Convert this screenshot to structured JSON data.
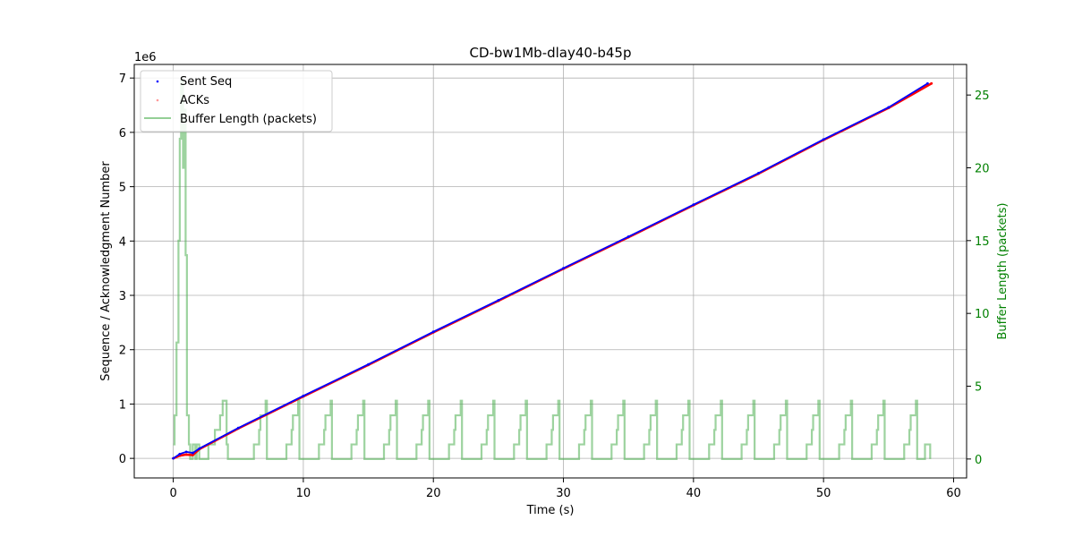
{
  "chart_data": {
    "type": "line",
    "title": "CD-bw1Mb-dlay40-b45p",
    "xlabel": "Time (s)",
    "ylabel": "Sequence / Acknowledgment Number",
    "y2label": "Buffer Length (packets)",
    "y_offset_label": "1e6",
    "xlim": [
      -3,
      61
    ],
    "ylim": [
      -0.36,
      7.25
    ],
    "y2lim": [
      -1.3,
      27.1
    ],
    "x_ticks": [
      0,
      10,
      20,
      30,
      40,
      50,
      60
    ],
    "y_ticks": [
      0,
      1,
      2,
      3,
      4,
      5,
      6,
      7
    ],
    "y2_ticks": [
      0,
      5,
      10,
      15,
      20,
      25
    ],
    "grid": true,
    "legend_position": "top-left",
    "colors": {
      "sent": "#0000ff",
      "acks": "#ff0000",
      "buffer": "#4caf50",
      "right_axis": "#008000"
    },
    "series": [
      {
        "name": "Sent Seq",
        "axis": "left",
        "style": "points",
        "x": [
          0,
          0.5,
          1.0,
          1.5,
          2,
          5,
          10,
          15,
          20,
          25,
          30,
          35,
          40,
          45,
          50,
          55,
          58
        ],
        "y": [
          0,
          0.08,
          0.12,
          0.1,
          0.18,
          0.56,
          1.15,
          1.73,
          2.33,
          2.91,
          3.5,
          4.08,
          4.67,
          5.25,
          5.87,
          6.46,
          6.9
        ]
      },
      {
        "name": "ACKs",
        "axis": "left",
        "style": "points",
        "x": [
          0,
          0.5,
          1.0,
          1.5,
          2,
          5,
          10,
          15,
          20,
          25,
          30,
          35,
          40,
          45,
          50,
          55,
          58.3
        ],
        "y": [
          0,
          0.05,
          0.07,
          0.06,
          0.17,
          0.55,
          1.14,
          1.72,
          2.32,
          2.9,
          3.49,
          4.07,
          4.66,
          5.24,
          5.86,
          6.45,
          6.9
        ]
      },
      {
        "name": "Buffer Length (packets)",
        "axis": "right",
        "style": "steps",
        "x": [
          0,
          0.1,
          0.25,
          0.4,
          0.5,
          0.6,
          0.75,
          0.85,
          0.95,
          1.05,
          1.2,
          1.3,
          1.5,
          1.7,
          1.8,
          2.0,
          2.7,
          3.2,
          3.6,
          3.8,
          4.1,
          4.2,
          6.2,
          6.6,
          6.7,
          7.1,
          7.2,
          8.7,
          9.1,
          9.2,
          9.6,
          9.7,
          11.2,
          11.6,
          11.7,
          12.1,
          12.2,
          13.7,
          14.1,
          14.2,
          14.6,
          14.7,
          16.2,
          16.6,
          16.7,
          17.1,
          17.2,
          18.7,
          19.1,
          19.2,
          19.6,
          19.7,
          21.2,
          21.6,
          21.7,
          22.1,
          22.2,
          23.7,
          24.1,
          24.2,
          24.6,
          24.7,
          26.2,
          26.6,
          26.7,
          27.1,
          27.2,
          28.7,
          29.1,
          29.2,
          29.6,
          29.7,
          31.2,
          31.6,
          31.7,
          32.1,
          32.2,
          33.7,
          34.1,
          34.2,
          34.6,
          34.7,
          36.2,
          36.6,
          36.7,
          37.1,
          37.2,
          38.7,
          39.1,
          39.2,
          39.6,
          39.7,
          41.2,
          41.6,
          41.7,
          42.1,
          42.2,
          43.7,
          44.1,
          44.2,
          44.6,
          44.7,
          46.2,
          46.6,
          46.7,
          47.1,
          47.2,
          48.7,
          49.1,
          49.2,
          49.6,
          49.7,
          51.2,
          51.6,
          51.7,
          52.1,
          52.2,
          53.7,
          54.1,
          54.2,
          54.6,
          54.7,
          56.2,
          56.6,
          56.7,
          57.1,
          57.2,
          57.8,
          58.2
        ],
        "y": [
          1,
          3,
          8,
          15,
          22,
          26,
          20,
          24,
          14,
          3,
          1,
          0,
          1,
          0,
          1,
          0,
          1,
          2,
          3,
          4,
          1,
          0,
          1,
          2,
          3,
          4,
          0,
          1,
          2,
          3,
          4,
          0,
          1,
          2,
          3,
          4,
          0,
          1,
          2,
          3,
          4,
          0,
          1,
          2,
          3,
          4,
          0,
          1,
          2,
          3,
          4,
          0,
          1,
          2,
          3,
          4,
          0,
          1,
          2,
          3,
          4,
          0,
          1,
          2,
          3,
          4,
          0,
          1,
          2,
          3,
          4,
          0,
          1,
          2,
          3,
          4,
          0,
          1,
          2,
          3,
          4,
          0,
          1,
          2,
          3,
          4,
          0,
          1,
          2,
          3,
          4,
          0,
          1,
          2,
          3,
          4,
          0,
          1,
          2,
          3,
          4,
          0,
          1,
          2,
          3,
          4,
          0,
          1,
          2,
          3,
          4,
          0,
          1,
          2,
          3,
          4,
          0,
          1,
          2,
          3,
          4,
          0,
          1,
          2,
          3,
          4,
          0,
          1,
          0
        ]
      }
    ]
  }
}
